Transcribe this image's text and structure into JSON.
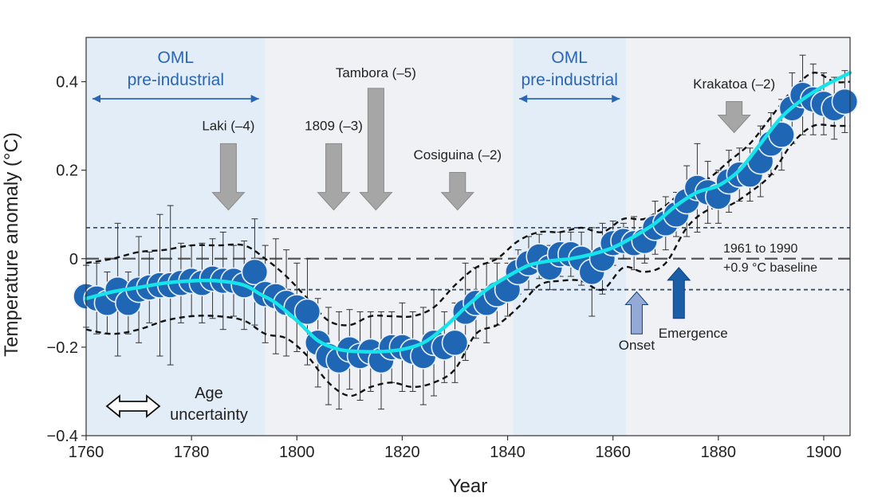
{
  "chart_data": {
    "type": "line",
    "xlabel": "Year",
    "ylabel": "Temperature anomaly (°C)",
    "xlim": [
      1760,
      1905
    ],
    "ylim": [
      -0.4,
      0.5
    ],
    "xticks": [
      1760,
      1780,
      1800,
      1820,
      1840,
      1860,
      1880,
      1900
    ],
    "xtick_labels": [
      "1760",
      "1780",
      "1800",
      "1820",
      "1840",
      "1860",
      "1880",
      "1900"
    ],
    "yticks": [
      -0.4,
      -0.2,
      0,
      0.2,
      0.4
    ],
    "ytick_labels": [
      "−0.4",
      "−0.2",
      "0",
      "0.2",
      "0.4"
    ],
    "shaded_regions": [
      {
        "name": "OML pre-industrial 1",
        "x0": 1760,
        "x1": 1794,
        "label_line1": "OML",
        "label_line2": "pre-industrial"
      },
      {
        "name": "OML pre-industrial 2",
        "x0": 1841,
        "x1": 1862.5,
        "label_line1": "OML",
        "label_line2": "pre-industrial"
      }
    ],
    "middle_region": {
      "x0": 1794,
      "x1": 1841
    },
    "baseline": {
      "y": 0,
      "upper": 0.07,
      "lower": -0.07,
      "label_line1": "1961 to 1990",
      "label_line2": "+0.9 °C baseline"
    },
    "volcanoes": [
      {
        "label": "Laki (–4)",
        "year": 1787,
        "y_top": 0.26,
        "y_bottom": 0.11,
        "label_y": 0.29
      },
      {
        "label": "1809 (–3)",
        "year": 1807,
        "y_top": 0.26,
        "y_bottom": 0.11,
        "label_y": 0.29
      },
      {
        "label": "Tambora (–5)",
        "year": 1815,
        "y_top": 0.385,
        "y_bottom": 0.11,
        "label_y": 0.41
      },
      {
        "label": "Cosiguina (–2)",
        "year": 1830.5,
        "y_top": 0.195,
        "y_bottom": 0.11,
        "label_y": 0.225
      },
      {
        "label": "Krakatoa (–2)",
        "year": 1883,
        "y_top": 0.355,
        "y_bottom": 0.285,
        "label_y": 0.385
      }
    ],
    "markers": [
      {
        "label": "Onset",
        "year": 1864.5,
        "y_bottom": -0.17,
        "y_top": -0.075
      },
      {
        "label": "Emergence",
        "year": 1872.5,
        "y_bottom": -0.135,
        "y_top": -0.02
      }
    ],
    "age_uncertainty": {
      "line1": "Age",
      "line2": "uncertainty"
    },
    "series": [
      {
        "name": "Annual reconstruction",
        "x": [
          1760,
          1762,
          1764,
          1766,
          1768,
          1770,
          1772,
          1774,
          1776,
          1778,
          1780,
          1782,
          1784,
          1786,
          1788,
          1790,
          1792,
          1794,
          1796,
          1798,
          1800,
          1802,
          1804,
          1806,
          1808,
          1810,
          1812,
          1814,
          1816,
          1818,
          1820,
          1822,
          1824,
          1826,
          1828,
          1830,
          1832,
          1834,
          1836,
          1838,
          1840,
          1842,
          1844,
          1846,
          1848,
          1850,
          1852,
          1854,
          1856,
          1858,
          1860,
          1862,
          1864,
          1866,
          1868,
          1870,
          1872,
          1874,
          1876,
          1878,
          1880,
          1882,
          1884,
          1886,
          1888,
          1890,
          1892,
          1894,
          1896,
          1898,
          1900,
          1902,
          1904
        ],
        "y": [
          -0.085,
          -0.09,
          -0.1,
          -0.07,
          -0.1,
          -0.07,
          -0.065,
          -0.06,
          -0.06,
          -0.055,
          -0.05,
          -0.055,
          -0.045,
          -0.05,
          -0.05,
          -0.06,
          -0.03,
          -0.08,
          -0.085,
          -0.1,
          -0.11,
          -0.12,
          -0.19,
          -0.22,
          -0.23,
          -0.205,
          -0.22,
          -0.21,
          -0.23,
          -0.2,
          -0.2,
          -0.21,
          -0.22,
          -0.19,
          -0.2,
          -0.19,
          -0.12,
          -0.1,
          -0.1,
          -0.08,
          -0.07,
          -0.03,
          -0.01,
          0.005,
          -0.02,
          0.01,
          0.01,
          0.0,
          -0.03,
          0.0,
          0.035,
          0.04,
          0.035,
          0.04,
          0.07,
          0.08,
          0.1,
          0.13,
          0.16,
          0.15,
          0.14,
          0.175,
          0.19,
          0.19,
          0.22,
          0.26,
          0.28,
          0.34,
          0.37,
          0.36,
          0.35,
          0.34,
          0.355
        ],
        "err": [
          0.07,
          0.08,
          0.07,
          0.15,
          0.07,
          0.12,
          0.08,
          0.16,
          0.18,
          0.09,
          0.08,
          0.09,
          0.09,
          0.11,
          0.08,
          0.1,
          0.12,
          0.11,
          0.13,
          0.12,
          0.1,
          0.12,
          0.1,
          0.11,
          0.11,
          0.09,
          0.1,
          0.09,
          0.11,
          0.08,
          0.1,
          0.09,
          0.11,
          0.12,
          0.08,
          0.09,
          0.11,
          0.08,
          0.09,
          0.07,
          0.06,
          0.05,
          0.06,
          0.05,
          0.05,
          0.05,
          0.05,
          0.06,
          0.1,
          0.08,
          0.05,
          0.04,
          0.06,
          0.05,
          0.06,
          0.06,
          0.05,
          0.08,
          0.1,
          0.07,
          0.06,
          0.07,
          0.06,
          0.06,
          0.08,
          0.07,
          0.08,
          0.08,
          0.09,
          0.08,
          0.07,
          0.07,
          0.07
        ]
      },
      {
        "name": "Smoothed trend",
        "x": [
          1760,
          1765,
          1770,
          1775,
          1780,
          1785,
          1790,
          1793,
          1796,
          1800,
          1804,
          1808,
          1812,
          1816,
          1820,
          1824,
          1828,
          1832,
          1836,
          1840,
          1844,
          1848,
          1852,
          1856,
          1860,
          1864,
          1868,
          1872,
          1876,
          1880,
          1884,
          1888,
          1892,
          1896,
          1900,
          1905
        ],
        "y": [
          -0.09,
          -0.075,
          -0.065,
          -0.055,
          -0.05,
          -0.05,
          -0.06,
          -0.08,
          -0.1,
          -0.14,
          -0.185,
          -0.205,
          -0.21,
          -0.21,
          -0.205,
          -0.19,
          -0.155,
          -0.11,
          -0.07,
          -0.04,
          -0.015,
          -0.005,
          0.0,
          0.01,
          0.025,
          0.05,
          0.08,
          0.12,
          0.15,
          0.165,
          0.2,
          0.26,
          0.32,
          0.36,
          0.39,
          0.42
        ]
      },
      {
        "name": "Upper bound",
        "x": [
          1760,
          1765,
          1770,
          1775,
          1780,
          1785,
          1790,
          1794,
          1798,
          1802,
          1806,
          1810,
          1814,
          1818,
          1822,
          1826,
          1830,
          1834,
          1838,
          1842,
          1846,
          1850,
          1854,
          1858,
          1862,
          1866,
          1870,
          1874,
          1878,
          1882,
          1886,
          1890,
          1894,
          1898,
          1902,
          1905
        ],
        "y": [
          -0.01,
          0.0,
          0.015,
          0.02,
          0.03,
          0.03,
          0.03,
          0.0,
          -0.04,
          -0.09,
          -0.14,
          -0.15,
          -0.13,
          -0.13,
          -0.13,
          -0.11,
          -0.06,
          -0.02,
          0.0,
          0.04,
          0.06,
          0.06,
          0.07,
          0.06,
          0.09,
          0.09,
          0.12,
          0.16,
          0.18,
          0.22,
          0.26,
          0.32,
          0.38,
          0.42,
          0.4,
          0.4
        ]
      },
      {
        "name": "Lower bound",
        "x": [
          1760,
          1765,
          1770,
          1775,
          1780,
          1785,
          1790,
          1794,
          1798,
          1802,
          1806,
          1810,
          1814,
          1818,
          1822,
          1826,
          1830,
          1834,
          1838,
          1842,
          1846,
          1850,
          1854,
          1858,
          1862,
          1866,
          1870,
          1874,
          1878,
          1882,
          1886,
          1890,
          1894,
          1898,
          1902,
          1905
        ],
        "y": [
          -0.16,
          -0.17,
          -0.16,
          -0.14,
          -0.13,
          -0.13,
          -0.14,
          -0.17,
          -0.18,
          -0.22,
          -0.28,
          -0.31,
          -0.29,
          -0.28,
          -0.29,
          -0.28,
          -0.25,
          -0.17,
          -0.15,
          -0.11,
          -0.06,
          -0.05,
          -0.05,
          -0.07,
          -0.02,
          -0.03,
          -0.01,
          0.07,
          0.11,
          0.12,
          0.15,
          0.19,
          0.26,
          0.3,
          0.3,
          0.3
        ]
      }
    ],
    "colors": {
      "points": "#1f66b5",
      "point_edge": "#e8f0fb",
      "smooth": "#17e3ea",
      "bounds": "#111111",
      "baseline": "#555555",
      "dotted_band": "#3b4f6e",
      "oml_fill": "#e3edf8",
      "middle_fill": "#eff1f4",
      "volcano_arrow": "#a6a6a6",
      "onset_fill": "#94aad6",
      "emergence_fill": "#1b5ea8",
      "oml_text": "#2a66b3"
    }
  }
}
